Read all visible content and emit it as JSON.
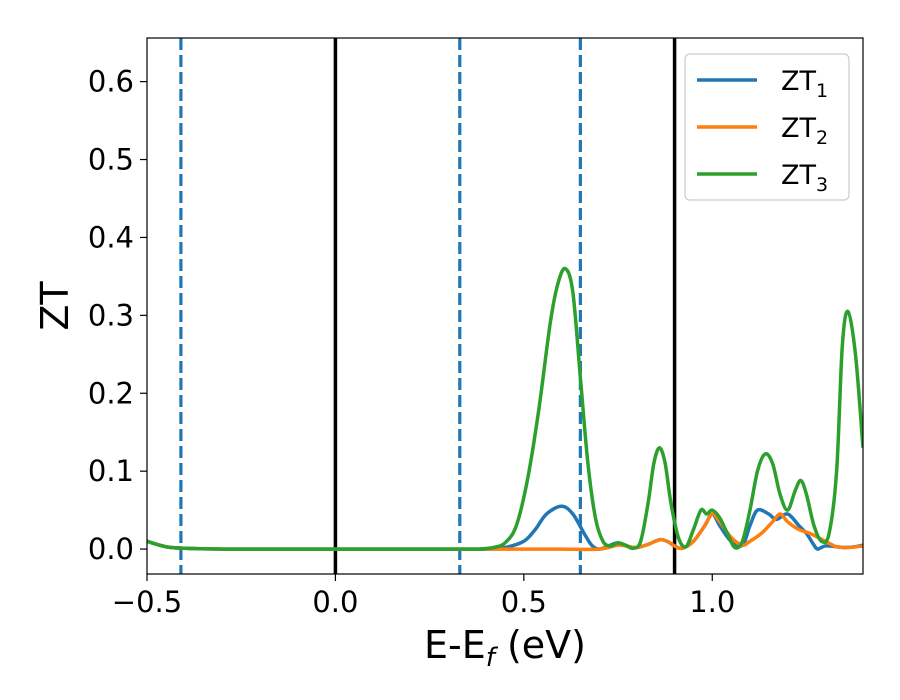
{
  "chart_data": {
    "type": "line",
    "xlabel": "E-E",
    "xlabel_sub": "f",
    "xlabel_unit": " (eV)",
    "ylabel": "ZT",
    "xlim": [
      -0.5,
      1.4
    ],
    "ylim": [
      -0.032,
      0.656
    ],
    "xticks": [
      -0.5,
      0.0,
      0.5,
      1.0
    ],
    "xtick_labels": [
      "−0.5",
      "0.0",
      "0.5",
      "1.0"
    ],
    "yticks": [
      0.0,
      0.1,
      0.2,
      0.3,
      0.4,
      0.5,
      0.6
    ],
    "ytick_labels": [
      "0.0",
      "0.1",
      "0.2",
      "0.3",
      "0.4",
      "0.5",
      "0.6"
    ],
    "grid": false,
    "legend_position": "top-right",
    "vlines": [
      {
        "x": 0.0,
        "style": "solid",
        "color": "#000000"
      },
      {
        "x": 0.9,
        "style": "solid",
        "color": "#000000"
      },
      {
        "x": -0.41,
        "style": "dashed",
        "color": "#1f77b4"
      },
      {
        "x": 0.33,
        "style": "dashed",
        "color": "#1f77b4"
      },
      {
        "x": 0.65,
        "style": "dashed",
        "color": "#1f77b4"
      }
    ],
    "series": [
      {
        "name": "ZT",
        "name_sub": "1",
        "color": "#1f77b4",
        "x": [
          -0.5,
          -0.45,
          -0.4,
          -0.3,
          -0.2,
          -0.1,
          0.0,
          0.1,
          0.2,
          0.3,
          0.33,
          0.4,
          0.45,
          0.5,
          0.53,
          0.56,
          0.6,
          0.63,
          0.66,
          0.68,
          0.7,
          0.73,
          0.75,
          0.78,
          0.8,
          0.83,
          0.86,
          0.88,
          0.9,
          0.92,
          0.95,
          0.98,
          1.0,
          1.02,
          1.05,
          1.08,
          1.1,
          1.12,
          1.15,
          1.17,
          1.2,
          1.23,
          1.25,
          1.27,
          1.28,
          1.3,
          1.33,
          1.35,
          1.38,
          1.4
        ],
        "y": [
          0.01,
          0.003,
          0.001,
          0.0,
          0.0,
          0.0,
          0.0,
          0.0,
          0.0,
          0.0,
          0.0,
          0.0,
          0.002,
          0.01,
          0.025,
          0.045,
          0.055,
          0.045,
          0.02,
          0.005,
          0.0,
          0.005,
          0.008,
          0.003,
          0.002,
          0.006,
          0.012,
          0.01,
          0.004,
          0.001,
          0.01,
          0.03,
          0.045,
          0.03,
          0.01,
          0.005,
          0.03,
          0.05,
          0.045,
          0.038,
          0.045,
          0.03,
          0.02,
          0.005,
          0.0,
          0.004,
          0.003,
          0.002,
          0.003,
          0.005
        ]
      },
      {
        "name": "ZT",
        "name_sub": "2",
        "color": "#ff7f0e",
        "x": [
          -0.5,
          -0.45,
          -0.4,
          -0.3,
          -0.2,
          -0.1,
          0.0,
          0.1,
          0.2,
          0.3,
          0.33,
          0.4,
          0.45,
          0.5,
          0.6,
          0.7,
          0.75,
          0.78,
          0.8,
          0.83,
          0.86,
          0.88,
          0.9,
          0.92,
          0.95,
          0.98,
          1.0,
          1.02,
          1.05,
          1.08,
          1.1,
          1.13,
          1.16,
          1.18,
          1.2,
          1.23,
          1.26,
          1.3,
          1.33,
          1.36,
          1.4
        ],
        "y": [
          0.01,
          0.003,
          0.001,
          0.0,
          0.0,
          0.0,
          0.0,
          0.0,
          0.0,
          0.0,
          0.0,
          0.0,
          0.0,
          0.0,
          0.0,
          0.0,
          0.005,
          0.003,
          0.002,
          0.006,
          0.012,
          0.01,
          0.004,
          0.001,
          0.01,
          0.03,
          0.045,
          0.035,
          0.015,
          0.005,
          0.01,
          0.02,
          0.035,
          0.045,
          0.035,
          0.025,
          0.02,
          0.01,
          0.003,
          0.002,
          0.004
        ]
      },
      {
        "name": "ZT",
        "name_sub": "3",
        "color": "#2ca02c",
        "x": [
          -0.5,
          -0.45,
          -0.4,
          -0.3,
          -0.2,
          -0.1,
          0.0,
          0.1,
          0.2,
          0.3,
          0.33,
          0.38,
          0.42,
          0.45,
          0.48,
          0.51,
          0.54,
          0.57,
          0.59,
          0.61,
          0.63,
          0.65,
          0.67,
          0.69,
          0.71,
          0.73,
          0.75,
          0.77,
          0.79,
          0.81,
          0.83,
          0.845,
          0.86,
          0.875,
          0.89,
          0.91,
          0.93,
          0.95,
          0.97,
          0.985,
          1.0,
          1.02,
          1.04,
          1.06,
          1.08,
          1.1,
          1.12,
          1.14,
          1.16,
          1.18,
          1.2,
          1.22,
          1.235,
          1.25,
          1.27,
          1.29,
          1.31,
          1.33,
          1.345,
          1.36,
          1.38,
          1.4
        ],
        "y": [
          0.01,
          0.003,
          0.001,
          0.0,
          0.0,
          0.0,
          0.0,
          0.0,
          0.0,
          0.0,
          0.0,
          0.0,
          0.002,
          0.008,
          0.03,
          0.09,
          0.18,
          0.29,
          0.34,
          0.36,
          0.33,
          0.22,
          0.11,
          0.04,
          0.01,
          0.004,
          0.008,
          0.005,
          0.001,
          0.01,
          0.06,
          0.11,
          0.13,
          0.11,
          0.06,
          0.015,
          0.003,
          0.025,
          0.05,
          0.045,
          0.05,
          0.04,
          0.02,
          0.002,
          0.01,
          0.05,
          0.1,
          0.122,
          0.11,
          0.07,
          0.05,
          0.075,
          0.088,
          0.07,
          0.03,
          0.01,
          0.02,
          0.1,
          0.26,
          0.305,
          0.25,
          0.13
        ]
      }
    ]
  }
}
